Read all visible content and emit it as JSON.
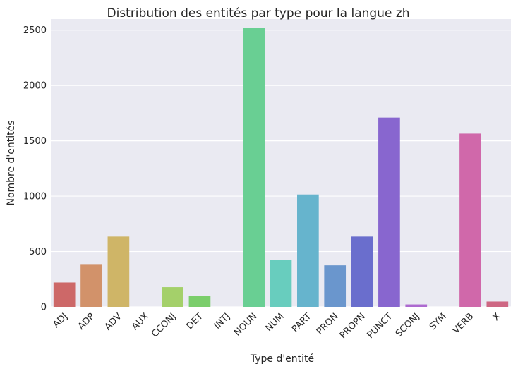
{
  "chart_data": {
    "type": "bar",
    "title": "Distribution des entités par type pour la langue zh",
    "xlabel": "Type d'entité",
    "ylabel": "Nombre d'entités",
    "categories": [
      "ADJ",
      "ADP",
      "ADV",
      "AUX",
      "CCONJ",
      "DET",
      "INTJ",
      "NOUN",
      "NUM",
      "PART",
      "PRON",
      "PROPN",
      "PUNCT",
      "SCONJ",
      "SYM",
      "VERB",
      "X"
    ],
    "values": [
      220,
      380,
      635,
      0,
      178,
      100,
      0,
      2520,
      425,
      1015,
      375,
      635,
      1710,
      22,
      0,
      1565,
      48
    ],
    "colors": [
      "#cd6868",
      "#d2926a",
      "#cfb567",
      "#c4d06a",
      "#a4d06a",
      "#7bce6b",
      "#6bce84",
      "#69cf93",
      "#68cdbe",
      "#66b4cd",
      "#6a96cd",
      "#6a6ecd",
      "#8866cf",
      "#ad6ad0",
      "#cd6ad0",
      "#d068aa",
      "#ce6783"
    ],
    "ylim": [
      0,
      2600
    ],
    "yticks": [
      0,
      500,
      1000,
      1500,
      2000,
      2500
    ],
    "grid": true,
    "background": "#eaeaf2"
  }
}
